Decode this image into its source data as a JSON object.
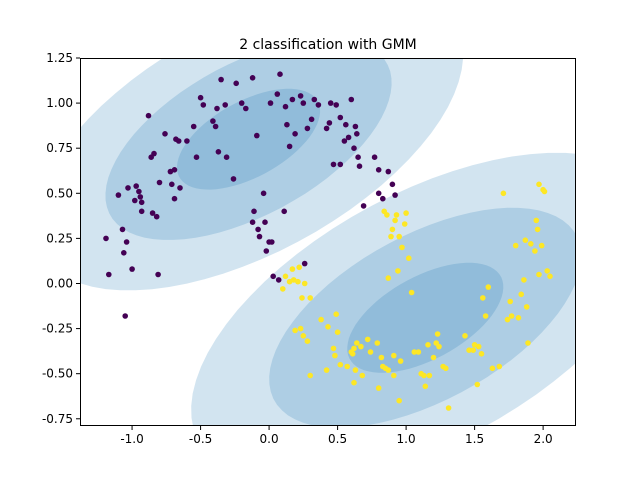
{
  "chart_data": {
    "type": "scatter",
    "title": "2 classification with GMM",
    "xlabel": "",
    "ylabel": "",
    "xlim": [
      -1.38,
      2.24
    ],
    "ylim": [
      -0.79,
      1.25
    ],
    "grid": false,
    "legend": "none",
    "xticks": [
      "-1.0",
      "-0.5",
      "0.0",
      "0.5",
      "1.0",
      "1.5",
      "2.0"
    ],
    "xtick_values": [
      -1.0,
      -0.5,
      0.0,
      0.5,
      1.0,
      1.5,
      2.0
    ],
    "yticks": [
      "-0.75",
      "-0.50",
      "-0.25",
      "0.00",
      "0.25",
      "0.50",
      "0.75",
      "1.00",
      "1.25"
    ],
    "ytick_values": [
      -0.75,
      -0.5,
      -0.25,
      0.0,
      0.25,
      0.5,
      0.75,
      1.0,
      1.25
    ],
    "colors": {
      "class_0": "#440154",
      "class_1": "#fde725",
      "ellipse": "#1f77b4"
    },
    "ellipse_alpha": 0.2,
    "ellipses": [
      {
        "cluster": 0,
        "cx": -0.15,
        "cy": 0.8,
        "sigmas": [
          {
            "n": 1,
            "rx": 0.55,
            "ry": 0.22,
            "angle": 20
          },
          {
            "n": 2,
            "rx": 1.1,
            "ry": 0.44,
            "angle": 20
          },
          {
            "n": 3,
            "rx": 1.65,
            "ry": 0.66,
            "angle": 20
          }
        ]
      },
      {
        "cluster": 1,
        "cx": 1.14,
        "cy": -0.19,
        "sigmas": [
          {
            "n": 1,
            "rx": 0.6,
            "ry": 0.24,
            "angle": 20
          },
          {
            "n": 2,
            "rx": 1.2,
            "ry": 0.48,
            "angle": 20
          },
          {
            "n": 3,
            "rx": 1.8,
            "ry": 0.72,
            "angle": 20
          }
        ]
      }
    ],
    "series": [
      {
        "class": 0,
        "color": "#440154",
        "points": [
          [
            -1.19,
            0.25
          ],
          [
            -1.17,
            0.05
          ],
          [
            -1.1,
            0.49
          ],
          [
            -1.07,
            0.3
          ],
          [
            -1.06,
            0.17
          ],
          [
            -1.05,
            -0.18
          ],
          [
            -1.04,
            0.23
          ],
          [
            -1.03,
            0.53
          ],
          [
            -1.0,
            0.08
          ],
          [
            -0.98,
            0.46
          ],
          [
            -0.97,
            0.54
          ],
          [
            -0.95,
            0.51
          ],
          [
            -0.94,
            0.48
          ],
          [
            -0.93,
            0.45
          ],
          [
            -0.93,
            0.4
          ],
          [
            -0.88,
            0.93
          ],
          [
            -0.86,
            0.7
          ],
          [
            -0.84,
            0.72
          ],
          [
            -0.85,
            0.39
          ],
          [
            -0.81,
            0.05
          ],
          [
            -0.82,
            0.37
          ],
          [
            -0.8,
            0.56
          ],
          [
            -0.76,
            0.83
          ],
          [
            -0.72,
            0.62
          ],
          [
            -0.71,
            0.55
          ],
          [
            -0.69,
            0.63
          ],
          [
            -0.69,
            0.47
          ],
          [
            -0.68,
            0.8
          ],
          [
            -0.66,
            0.79
          ],
          [
            -0.65,
            0.53
          ],
          [
            -0.6,
            0.79
          ],
          [
            -0.55,
            0.87
          ],
          [
            -0.53,
            0.7
          ],
          [
            -0.5,
            1.03
          ],
          [
            -0.48,
            0.99
          ],
          [
            -0.41,
            0.9
          ],
          [
            -0.39,
            0.87
          ],
          [
            -0.37,
            0.73
          ],
          [
            -0.38,
            0.97
          ],
          [
            -0.35,
            1.13
          ],
          [
            -0.32,
            0.99
          ],
          [
            -0.31,
            0.7
          ],
          [
            -0.26,
            0.58
          ],
          [
            -0.24,
            1.11
          ],
          [
            -0.2,
            1.0
          ],
          [
            -0.17,
            0.97
          ],
          [
            -0.12,
            1.14
          ],
          [
            -0.12,
            0.34
          ],
          [
            -0.11,
            0.4
          ],
          [
            -0.09,
            0.82
          ],
          [
            -0.08,
            0.3
          ],
          [
            -0.07,
            0.26
          ],
          [
            -0.04,
            0.5
          ],
          [
            -0.03,
            0.34
          ],
          [
            -0.02,
            0.18
          ],
          [
            0.0,
            0.23
          ],
          [
            0.01,
            1.0
          ],
          [
            0.02,
            0.23
          ],
          [
            0.03,
            0.04
          ],
          [
            0.06,
            1.05
          ],
          [
            0.08,
            1.16
          ],
          [
            0.07,
            0.02
          ],
          [
            0.11,
            0.4
          ],
          [
            0.12,
            0.98
          ],
          [
            0.13,
            0.88
          ],
          [
            0.15,
            0.76
          ],
          [
            0.17,
            1.02
          ],
          [
            0.19,
            0.83
          ],
          [
            0.23,
            1.04
          ],
          [
            0.25,
            1.0
          ],
          [
            0.26,
            0.11
          ],
          [
            0.28,
            0.86
          ],
          [
            0.31,
            0.91
          ],
          [
            0.33,
            1.02
          ],
          [
            0.36,
            0.99
          ],
          [
            0.42,
            0.86
          ],
          [
            0.44,
            0.89
          ],
          [
            0.45,
            1.0
          ],
          [
            0.49,
            0.99
          ],
          [
            0.47,
            0.66
          ],
          [
            0.52,
            0.92
          ],
          [
            0.52,
            0.66
          ],
          [
            0.55,
            0.79
          ],
          [
            0.56,
            0.88
          ],
          [
            0.58,
            0.81
          ],
          [
            0.6,
            1.02
          ],
          [
            0.62,
            0.75
          ],
          [
            0.63,
            0.87
          ],
          [
            0.64,
            0.83
          ],
          [
            0.65,
            0.7
          ],
          [
            0.66,
            0.65
          ],
          [
            0.69,
            0.43
          ],
          [
            0.77,
            0.7
          ],
          [
            0.8,
            0.63
          ],
          [
            0.8,
            0.5
          ],
          [
            0.83,
            0.47
          ],
          [
            0.87,
            0.62
          ],
          [
            0.9,
            0.55
          ],
          [
            0.92,
            0.49
          ]
        ]
      },
      {
        "class": 1,
        "color": "#fde725",
        "points": [
          [
            0.1,
            -0.03
          ],
          [
            0.12,
            0.04
          ],
          [
            0.15,
            0.01
          ],
          [
            0.17,
            0.08
          ],
          [
            0.18,
            0.02
          ],
          [
            0.19,
            -0.26
          ],
          [
            0.22,
            0.09
          ],
          [
            0.21,
            0.01
          ],
          [
            0.23,
            -0.25
          ],
          [
            0.24,
            -0.08
          ],
          [
            0.25,
            -0.29
          ],
          [
            0.26,
            0.0
          ],
          [
            0.28,
            -0.32
          ],
          [
            0.3,
            -0.08
          ],
          [
            0.3,
            -0.51
          ],
          [
            0.38,
            -0.2
          ],
          [
            0.42,
            -0.48
          ],
          [
            0.43,
            -0.24
          ],
          [
            0.47,
            -0.36
          ],
          [
            0.48,
            -0.4
          ],
          [
            0.49,
            -0.17
          ],
          [
            0.5,
            -0.27
          ],
          [
            0.52,
            -0.45
          ],
          [
            0.57,
            -0.46
          ],
          [
            0.6,
            -0.38
          ],
          [
            0.61,
            -0.39
          ],
          [
            0.62,
            -0.36
          ],
          [
            0.62,
            -0.55
          ],
          [
            0.63,
            -0.48
          ],
          [
            0.64,
            -0.33
          ],
          [
            0.67,
            -0.35
          ],
          [
            0.68,
            -0.51
          ],
          [
            0.72,
            -0.31
          ],
          [
            0.74,
            -0.38
          ],
          [
            0.79,
            -0.33
          ],
          [
            0.8,
            -0.58
          ],
          [
            0.82,
            -0.41
          ],
          [
            0.83,
            -0.46
          ],
          [
            0.85,
            -0.47
          ],
          [
            0.87,
            -0.48
          ],
          [
            0.84,
            0.4
          ],
          [
            0.86,
            0.38
          ],
          [
            0.87,
            0.03
          ],
          [
            0.89,
            0.26
          ],
          [
            0.9,
            0.3
          ],
          [
            0.91,
            -0.4
          ],
          [
            0.91,
            -0.51
          ],
          [
            0.92,
            0.35
          ],
          [
            0.93,
            0.38
          ],
          [
            0.94,
            0.07
          ],
          [
            0.95,
            -0.65
          ],
          [
            0.95,
            0.26
          ],
          [
            0.96,
            -0.43
          ],
          [
            0.97,
            0.2
          ],
          [
            0.99,
            0.33
          ],
          [
            1.0,
            0.39
          ],
          [
            1.02,
            0.14
          ],
          [
            1.04,
            -0.05
          ],
          [
            1.06,
            -0.38
          ],
          [
            1.09,
            -0.38
          ],
          [
            1.11,
            -0.5
          ],
          [
            1.13,
            -0.51
          ],
          [
            1.14,
            -0.57
          ],
          [
            1.16,
            -0.34
          ],
          [
            1.17,
            -0.51
          ],
          [
            1.2,
            -0.41
          ],
          [
            1.22,
            -0.33
          ],
          [
            1.23,
            -0.28
          ],
          [
            1.24,
            -0.35
          ],
          [
            1.27,
            -0.46
          ],
          [
            1.29,
            -0.47
          ],
          [
            1.31,
            -0.69
          ],
          [
            1.43,
            -0.29
          ],
          [
            1.46,
            -0.37
          ],
          [
            1.49,
            -0.37
          ],
          [
            1.5,
            -0.34
          ],
          [
            1.52,
            -0.56
          ],
          [
            1.53,
            -0.35
          ],
          [
            1.55,
            -0.39
          ],
          [
            1.56,
            -0.08
          ],
          [
            1.58,
            -0.18
          ],
          [
            1.6,
            -0.02
          ],
          [
            1.63,
            -0.47
          ],
          [
            1.68,
            -0.46
          ],
          [
            1.71,
            0.5
          ],
          [
            1.74,
            -0.2
          ],
          [
            1.76,
            -0.1
          ],
          [
            1.77,
            -0.18
          ],
          [
            1.8,
            0.21
          ],
          [
            1.82,
            -0.19
          ],
          [
            1.84,
            -0.06
          ],
          [
            1.86,
            0.02
          ],
          [
            1.87,
            0.24
          ],
          [
            1.88,
            -0.13
          ],
          [
            1.89,
            -0.33
          ],
          [
            1.91,
            0.22
          ],
          [
            1.94,
            0.18
          ],
          [
            1.95,
            0.35
          ],
          [
            1.96,
            0.3
          ],
          [
            1.97,
            0.05
          ],
          [
            1.97,
            0.55
          ],
          [
            1.99,
            0.21
          ],
          [
            2.0,
            0.52
          ],
          [
            2.01,
            0.51
          ],
          [
            2.03,
            0.07
          ],
          [
            2.05,
            0.04
          ]
        ]
      }
    ]
  }
}
